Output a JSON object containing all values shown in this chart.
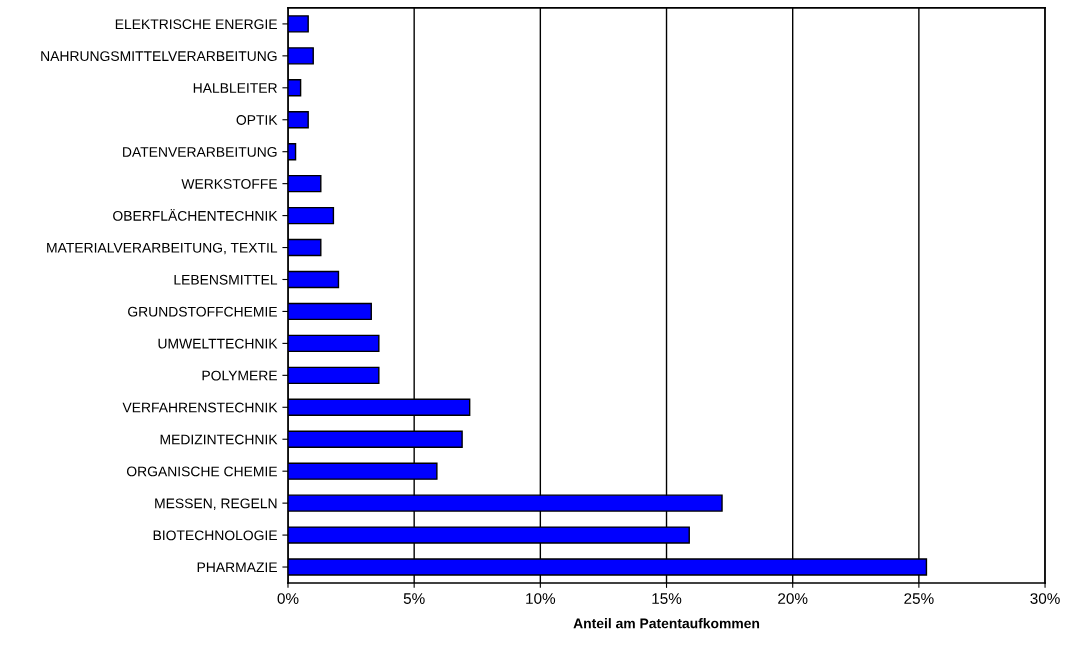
{
  "chart_data": {
    "type": "bar",
    "orientation": "horizontal",
    "xlabel": "Anteil am Patentaufkommen",
    "categories": [
      "ELEKTRISCHE ENERGIE",
      "NAHRUNGSMITTELVERARBEITUNG",
      "HALBLEITER",
      "OPTIK",
      "DATENVERARBEITUNG",
      "WERKSTOFFE",
      "OBERFLÄCHENTECHNIK",
      "MATERIALVERARBEITUNG, TEXTIL",
      "LEBENSMITTEL",
      "GRUNDSTOFFCHEMIE",
      "UMWELTTECHNIK",
      "POLYMERE",
      "VERFAHRENSTECHNIK",
      "MEDIZINTECHNIK",
      "ORGANISCHE CHEMIE",
      "MESSEN, REGELN",
      "BIOTECHNOLOGIE",
      "PHARMAZIE"
    ],
    "values": [
      0.8,
      1.0,
      0.5,
      0.8,
      0.3,
      1.3,
      1.8,
      1.3,
      2.0,
      3.3,
      3.6,
      3.6,
      7.2,
      6.9,
      5.9,
      17.2,
      15.9,
      25.3
    ],
    "color": "#0000ff",
    "xlim": [
      0,
      30
    ],
    "xticks": [
      {
        "value": 0,
        "label": "0%"
      },
      {
        "value": 5,
        "label": "5%"
      },
      {
        "value": 10,
        "label": "10%"
      },
      {
        "value": 15,
        "label": "15%"
      },
      {
        "value": 20,
        "label": "20%"
      },
      {
        "value": 25,
        "label": "25%"
      },
      {
        "value": 30,
        "label": "30%"
      }
    ],
    "grid": "x",
    "legend": false
  }
}
